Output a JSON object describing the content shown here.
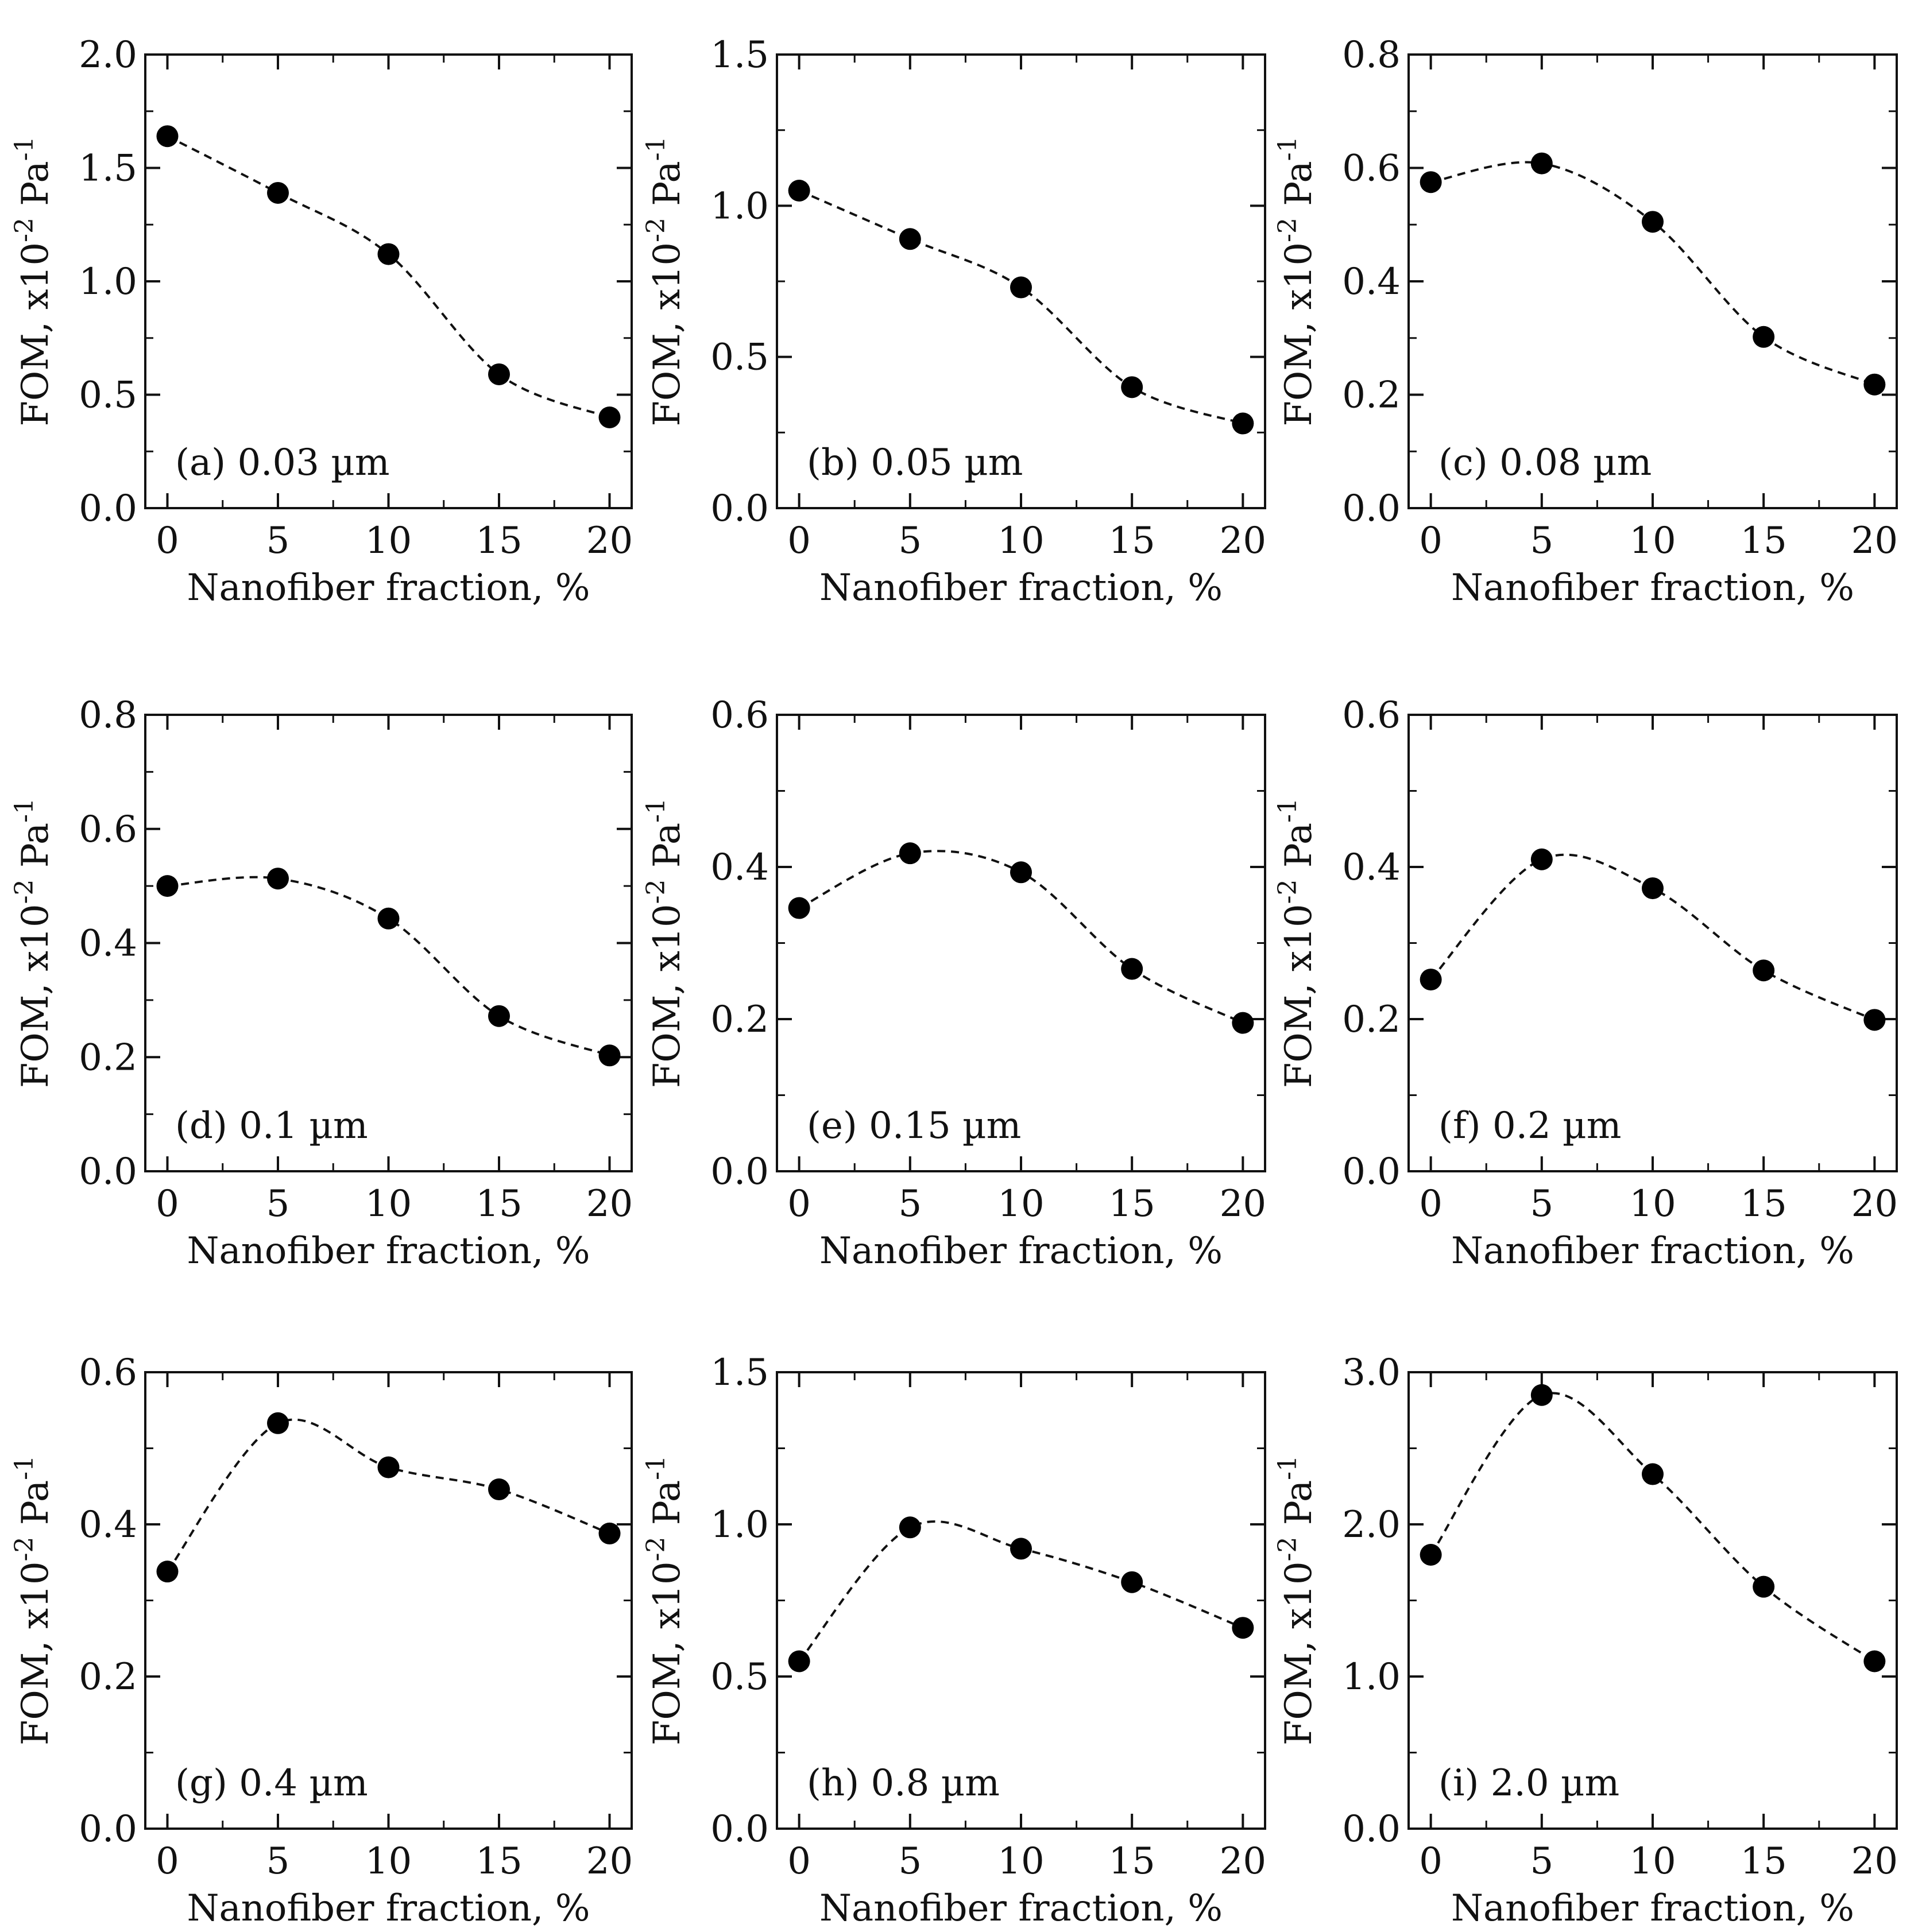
{
  "figure": {
    "x_label": "Nanofiber fraction, %",
    "y_label_main": "FOM, x10",
    "y_label_exp1": "-2",
    "y_label_mid": " Pa",
    "y_label_exp2": "-1"
  },
  "chart_data": [
    {
      "type": "scatter",
      "panel": "(a) 0.03 µm",
      "xlabel": "Nanofiber fraction, %",
      "ylabel": "FOM, x10-2 Pa-1",
      "x": [
        0,
        5,
        10,
        15,
        20
      ],
      "y": [
        1.64,
        1.39,
        1.12,
        0.59,
        0.4
      ],
      "xlim": [
        -1,
        21
      ],
      "ylim": [
        0,
        2.0
      ],
      "xticks": [
        0,
        5,
        10,
        15,
        20
      ],
      "xtick_labels": [
        "0",
        "5",
        "10",
        "15",
        "20"
      ],
      "yticks": [
        0,
        0.5,
        1.0,
        1.5,
        2.0
      ],
      "ytick_labels": [
        "0.0",
        "0.5",
        "1.0",
        "1.5",
        "2.0"
      ],
      "fit_line": "dashed smooth curve through points"
    },
    {
      "type": "scatter",
      "panel": "(b) 0.05 µm",
      "xlabel": "Nanofiber fraction, %",
      "ylabel": "FOM, x10-2 Pa-1",
      "x": [
        0,
        5,
        10,
        15,
        20
      ],
      "y": [
        1.05,
        0.89,
        0.73,
        0.4,
        0.28
      ],
      "xlim": [
        -1,
        21
      ],
      "ylim": [
        0,
        1.5
      ],
      "xticks": [
        0,
        5,
        10,
        15,
        20
      ],
      "xtick_labels": [
        "0",
        "5",
        "10",
        "15",
        "20"
      ],
      "yticks": [
        0,
        0.5,
        1.0,
        1.5
      ],
      "ytick_labels": [
        "0.0",
        "0.5",
        "1.0",
        "1.5"
      ],
      "fit_line": "dashed smooth curve through points"
    },
    {
      "type": "scatter",
      "panel": "(c) 0.08 µm",
      "xlabel": "Nanofiber fraction, %",
      "ylabel": "FOM, x10-2 Pa-1",
      "x": [
        0,
        5,
        10,
        15,
        20
      ],
      "y": [
        0.575,
        0.608,
        0.505,
        0.302,
        0.218
      ],
      "xlim": [
        -1,
        21
      ],
      "ylim": [
        0,
        0.8
      ],
      "xticks": [
        0,
        5,
        10,
        15,
        20
      ],
      "xtick_labels": [
        "0",
        "5",
        "10",
        "15",
        "20"
      ],
      "yticks": [
        0,
        0.2,
        0.4,
        0.6,
        0.8
      ],
      "ytick_labels": [
        "0.0",
        "0.2",
        "0.4",
        "0.6",
        "0.8"
      ],
      "fit_line": "dashed smooth curve through points"
    },
    {
      "type": "scatter",
      "panel": "(d) 0.1 µm",
      "xlabel": "Nanofiber fraction, %",
      "ylabel": "FOM, x10-2 Pa-1",
      "x": [
        0,
        5,
        10,
        15,
        20
      ],
      "y": [
        0.5,
        0.513,
        0.443,
        0.272,
        0.203
      ],
      "xlim": [
        -1,
        21
      ],
      "ylim": [
        0,
        0.8
      ],
      "xticks": [
        0,
        5,
        10,
        15,
        20
      ],
      "xtick_labels": [
        "0",
        "5",
        "10",
        "15",
        "20"
      ],
      "yticks": [
        0,
        0.2,
        0.4,
        0.6,
        0.8
      ],
      "ytick_labels": [
        "0.0",
        "0.2",
        "0.4",
        "0.6",
        "0.8"
      ],
      "fit_line": "dashed smooth curve through points"
    },
    {
      "type": "scatter",
      "panel": "(e) 0.15 µm",
      "xlabel": "Nanofiber fraction, %",
      "ylabel": "FOM, x10-2 Pa-1",
      "x": [
        0,
        5,
        10,
        15,
        20
      ],
      "y": [
        0.346,
        0.418,
        0.393,
        0.266,
        0.195
      ],
      "xlim": [
        -1,
        21
      ],
      "ylim": [
        0,
        0.6
      ],
      "xticks": [
        0,
        5,
        10,
        15,
        20
      ],
      "xtick_labels": [
        "0",
        "5",
        "10",
        "15",
        "20"
      ],
      "yticks": [
        0,
        0.2,
        0.4,
        0.6
      ],
      "ytick_labels": [
        "0.0",
        "0.2",
        "0.4",
        "0.6"
      ],
      "fit_line": "dashed smooth curve through points"
    },
    {
      "type": "scatter",
      "panel": "(f) 0.2 µm",
      "xlabel": "Nanofiber fraction, %",
      "ylabel": "FOM, x10-2 Pa-1",
      "x": [
        0,
        5,
        10,
        15,
        20
      ],
      "y": [
        0.252,
        0.41,
        0.372,
        0.264,
        0.199
      ],
      "xlim": [
        -1,
        21
      ],
      "ylim": [
        0,
        0.6
      ],
      "xticks": [
        0,
        5,
        10,
        15,
        20
      ],
      "xtick_labels": [
        "0",
        "5",
        "10",
        "15",
        "20"
      ],
      "yticks": [
        0,
        0.2,
        0.4,
        0.6
      ],
      "ytick_labels": [
        "0.0",
        "0.2",
        "0.4",
        "0.6"
      ],
      "fit_line": "dashed smooth curve through points"
    },
    {
      "type": "scatter",
      "panel": "(g) 0.4 µm",
      "xlabel": "Nanofiber fraction, %",
      "ylabel": "FOM, x10-2 Pa-1",
      "x": [
        0,
        5,
        10,
        15,
        20
      ],
      "y": [
        0.338,
        0.533,
        0.475,
        0.446,
        0.388
      ],
      "xlim": [
        -1,
        21
      ],
      "ylim": [
        0,
        0.6
      ],
      "xticks": [
        0,
        5,
        10,
        15,
        20
      ],
      "xtick_labels": [
        "0",
        "5",
        "10",
        "15",
        "20"
      ],
      "yticks": [
        0,
        0.2,
        0.4,
        0.6
      ],
      "ytick_labels": [
        "0.0",
        "0.2",
        "0.4",
        "0.6"
      ],
      "fit_line": "dashed smooth curve through points"
    },
    {
      "type": "scatter",
      "panel": "(h) 0.8 µm",
      "xlabel": "Nanofiber fraction, %",
      "ylabel": "FOM, x10-2 Pa-1",
      "x": [
        0,
        5,
        10,
        15,
        20
      ],
      "y": [
        0.55,
        0.99,
        0.92,
        0.81,
        0.66
      ],
      "xlim": [
        -1,
        21
      ],
      "ylim": [
        0,
        1.5
      ],
      "xticks": [
        0,
        5,
        10,
        15,
        20
      ],
      "xtick_labels": [
        "0",
        "5",
        "10",
        "15",
        "20"
      ],
      "yticks": [
        0,
        0.5,
        1.0,
        1.5
      ],
      "ytick_labels": [
        "0.0",
        "0.5",
        "1.0",
        "1.5"
      ],
      "fit_line": "dashed smooth curve through points"
    },
    {
      "type": "scatter",
      "panel": "(i) 2.0 µm",
      "xlabel": "Nanofiber fraction, %",
      "ylabel": "FOM, x10-2 Pa-1",
      "x": [
        0,
        5,
        10,
        15,
        20
      ],
      "y": [
        1.8,
        2.85,
        2.33,
        1.59,
        1.1
      ],
      "xlim": [
        -1,
        21
      ],
      "ylim": [
        0,
        3.0
      ],
      "xticks": [
        0,
        5,
        10,
        15,
        20
      ],
      "xtick_labels": [
        "0",
        "5",
        "10",
        "15",
        "20"
      ],
      "yticks": [
        0,
        1.0,
        2.0,
        3.0
      ],
      "ytick_labels": [
        "0.0",
        "1.0",
        "2.0",
        "3.0"
      ],
      "fit_line": "dashed smooth curve through points"
    }
  ]
}
